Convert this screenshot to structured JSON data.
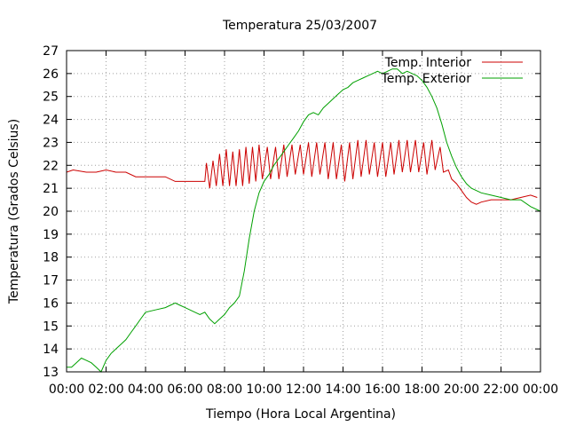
{
  "chart_data": {
    "type": "line",
    "title": "Temperatura 25/03/2007",
    "xlabel": "Tiempo (Hora Local Argentina)",
    "ylabel": "Temperatura (Grados Celsius)",
    "xlim": [
      "00:00",
      "24:00"
    ],
    "ylim": [
      13,
      27
    ],
    "grid": true,
    "legend_position": "top-right",
    "x_ticks": [
      "00:00",
      "02:00",
      "04:00",
      "06:00",
      "08:00",
      "10:00",
      "12:00",
      "14:00",
      "16:00",
      "18:00",
      "20:00",
      "22:00",
      "00:00"
    ],
    "y_ticks": [
      13,
      14,
      15,
      16,
      17,
      18,
      19,
      20,
      21,
      22,
      23,
      24,
      25,
      26,
      27
    ],
    "series": [
      {
        "name": "Temp. Interior",
        "color": "#cc0000",
        "x": [
          "00:00",
          "00:20",
          "01:00",
          "01:30",
          "02:00",
          "02:30",
          "03:00",
          "03:30",
          "04:00",
          "04:30",
          "05:00",
          "05:30",
          "06:00",
          "06:30",
          "07:00",
          "07:05",
          "07:15",
          "07:25",
          "07:35",
          "07:45",
          "07:55",
          "08:05",
          "08:15",
          "08:25",
          "08:35",
          "08:45",
          "08:55",
          "09:05",
          "09:15",
          "09:25",
          "09:35",
          "09:45",
          "09:55",
          "10:10",
          "10:20",
          "10:35",
          "10:45",
          "11:00",
          "11:10",
          "11:25",
          "11:35",
          "11:50",
          "12:00",
          "12:15",
          "12:25",
          "12:40",
          "12:50",
          "13:05",
          "13:15",
          "13:30",
          "13:40",
          "13:55",
          "14:05",
          "14:20",
          "14:30",
          "14:45",
          "14:55",
          "15:10",
          "15:20",
          "15:35",
          "15:45",
          "16:00",
          "16:10",
          "16:25",
          "16:35",
          "16:50",
          "17:00",
          "17:15",
          "17:25",
          "17:40",
          "17:50",
          "18:05",
          "18:15",
          "18:30",
          "18:40",
          "18:55",
          "19:05",
          "19:20",
          "19:30",
          "19:45",
          "20:00",
          "20:15",
          "20:30",
          "20:45",
          "21:00",
          "21:30",
          "22:00",
          "22:30",
          "23:00",
          "23:30",
          "23:50"
        ],
        "values": [
          21.7,
          21.8,
          21.7,
          21.7,
          21.8,
          21.7,
          21.7,
          21.5,
          21.5,
          21.5,
          21.5,
          21.3,
          21.3,
          21.3,
          21.3,
          22.1,
          21.0,
          22.2,
          21.1,
          22.5,
          21.1,
          22.7,
          21.1,
          22.6,
          21.1,
          22.7,
          21.1,
          22.8,
          21.2,
          22.8,
          21.3,
          22.9,
          21.4,
          22.8,
          21.4,
          22.8,
          21.4,
          22.9,
          21.5,
          22.9,
          21.6,
          22.9,
          21.6,
          23.0,
          21.5,
          23.0,
          21.6,
          23.0,
          21.4,
          23.0,
          21.4,
          22.9,
          21.3,
          23.0,
          21.4,
          23.1,
          21.5,
          23.1,
          21.6,
          23.0,
          21.5,
          23.0,
          21.5,
          23.0,
          21.6,
          23.1,
          21.7,
          23.1,
          21.7,
          23.1,
          21.7,
          23.0,
          21.6,
          23.1,
          21.8,
          22.8,
          21.7,
          21.8,
          21.4,
          21.2,
          20.9,
          20.6,
          20.4,
          20.3,
          20.4,
          20.5,
          20.5,
          20.5,
          20.6,
          20.7,
          20.6
        ]
      },
      {
        "name": "Temp. Exterior",
        "color": "#00a000",
        "x": [
          "00:00",
          "00:15",
          "00:30",
          "00:45",
          "01:00",
          "01:15",
          "01:30",
          "01:45",
          "02:00",
          "02:15",
          "02:30",
          "02:45",
          "03:00",
          "03:15",
          "03:30",
          "03:45",
          "04:00",
          "04:30",
          "05:00",
          "05:15",
          "05:30",
          "05:45",
          "06:00",
          "06:30",
          "06:45",
          "07:00",
          "07:15",
          "07:30",
          "07:45",
          "08:00",
          "08:15",
          "08:30",
          "08:45",
          "09:00",
          "09:15",
          "09:30",
          "09:45",
          "10:00",
          "10:15",
          "10:30",
          "10:45",
          "11:00",
          "11:15",
          "11:30",
          "11:45",
          "12:00",
          "12:15",
          "12:30",
          "12:45",
          "13:00",
          "13:15",
          "13:30",
          "13:45",
          "14:00",
          "14:15",
          "14:30",
          "14:45",
          "15:00",
          "15:15",
          "15:30",
          "15:45",
          "16:00",
          "16:15",
          "16:30",
          "16:45",
          "17:00",
          "17:15",
          "17:30",
          "17:45",
          "18:00",
          "18:15",
          "18:30",
          "18:45",
          "19:00",
          "19:15",
          "19:30",
          "19:45",
          "20:00",
          "20:15",
          "20:30",
          "20:45",
          "21:00",
          "21:30",
          "22:00",
          "22:30",
          "23:00",
          "23:30",
          "24:00"
        ],
        "values": [
          13.2,
          13.2,
          13.4,
          13.6,
          13.5,
          13.4,
          13.2,
          13.0,
          13.5,
          13.8,
          14.0,
          14.2,
          14.4,
          14.7,
          15.0,
          15.3,
          15.6,
          15.7,
          15.8,
          15.9,
          16.0,
          15.9,
          15.8,
          15.6,
          15.5,
          15.6,
          15.3,
          15.1,
          15.3,
          15.5,
          15.8,
          16.0,
          16.3,
          17.4,
          18.8,
          20.0,
          20.8,
          21.3,
          21.6,
          22.0,
          22.3,
          22.6,
          22.9,
          23.2,
          23.5,
          23.9,
          24.2,
          24.3,
          24.2,
          24.5,
          24.7,
          24.9,
          25.1,
          25.3,
          25.4,
          25.6,
          25.7,
          25.8,
          25.9,
          26.0,
          26.1,
          26.0,
          26.1,
          26.2,
          26.2,
          26.0,
          26.1,
          26.0,
          25.9,
          25.7,
          25.4,
          25.0,
          24.5,
          23.8,
          23.0,
          22.4,
          21.9,
          21.5,
          21.2,
          21.0,
          20.9,
          20.8,
          20.7,
          20.6,
          20.5,
          20.5,
          20.2,
          20.0
        ]
      }
    ]
  }
}
